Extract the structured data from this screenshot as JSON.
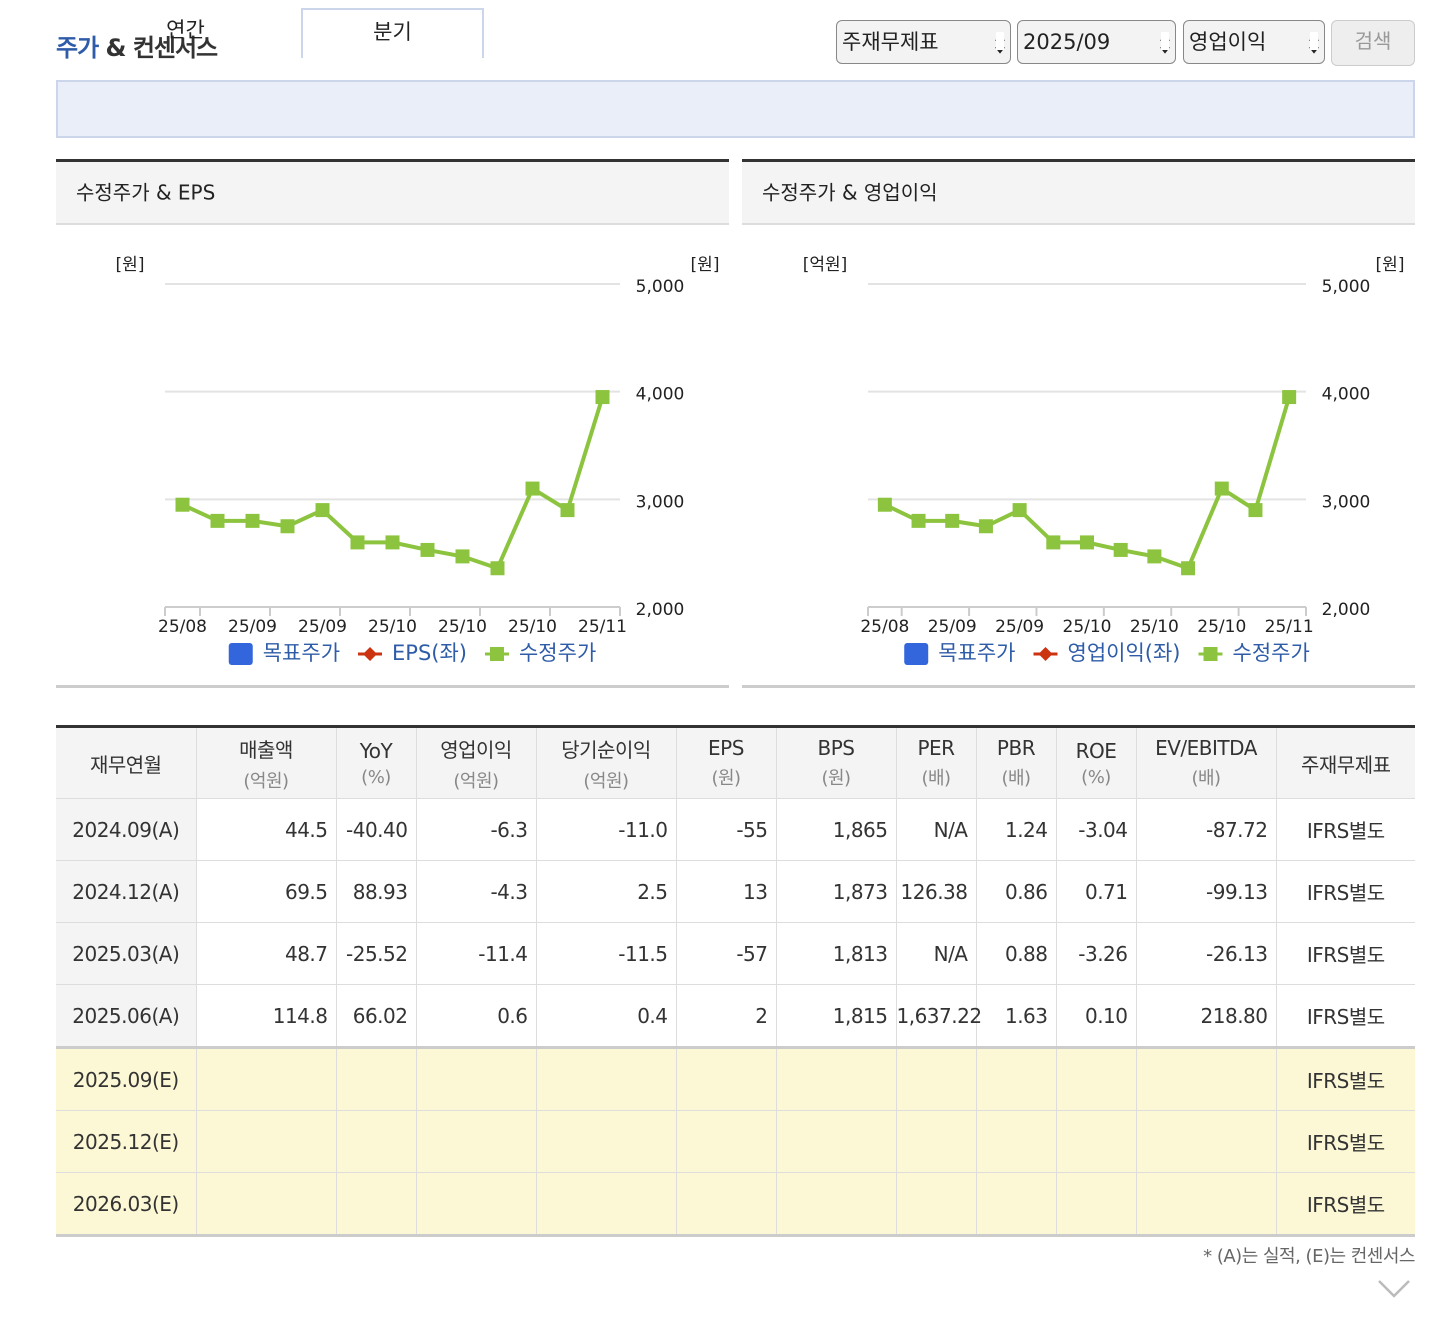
{
  "header": {
    "title_highlight": "주가",
    "title_rest": "& 컨센서스",
    "selects": [
      "주재무제표",
      "2025/09",
      "영업이익"
    ],
    "button": "검색"
  },
  "tabs": {
    "items": [
      "연간",
      "분기"
    ],
    "active": 1
  },
  "chart_data": [
    {
      "type": "line",
      "title": "수정주가 & EPS",
      "y_label": "[원]",
      "y2_label": "[원]",
      "categories": [
        "25/08",
        null,
        "25/09",
        null,
        "25/09",
        null,
        "25/10",
        null,
        "25/10",
        null,
        "25/10",
        null,
        "25/11"
      ],
      "series": [
        {
          "name": "목표주가",
          "color": "#3366dd",
          "marker": "square",
          "values": [
            null,
            null,
            null,
            null,
            null,
            null,
            null,
            null,
            null,
            null,
            null,
            null,
            null
          ]
        },
        {
          "name": "EPS(좌)",
          "color": "#cc3311",
          "marker": "diamond",
          "values": [
            null,
            null,
            null,
            null,
            null,
            null,
            null,
            null,
            null,
            null,
            null,
            null,
            null
          ]
        },
        {
          "name": "수정주가",
          "color": "#8cc43f",
          "marker": "square",
          "axis": "y2",
          "values": [
            2950,
            2800,
            2800,
            2750,
            2900,
            2600,
            2600,
            2530,
            2470,
            2360,
            3100,
            2900,
            3950
          ]
        }
      ],
      "y2lim": [
        2000,
        5000
      ],
      "y2ticks": [
        {
          "value": 2000,
          "label": "2,000"
        },
        {
          "value": 3000,
          "label": "3,000"
        },
        {
          "value": 4000,
          "label": "4,000"
        },
        {
          "value": 5000,
          "label": "5,000"
        }
      ],
      "grid": true
    },
    {
      "type": "line",
      "title": "수정주가 & 영업이익",
      "y_label": "[억원]",
      "y2_label": "[원]",
      "categories": [
        "25/08",
        null,
        "25/09",
        null,
        "25/09",
        null,
        "25/10",
        null,
        "25/10",
        null,
        "25/10",
        null,
        "25/11"
      ],
      "series": [
        {
          "name": "목표주가",
          "color": "#3366dd",
          "marker": "square",
          "values": [
            null,
            null,
            null,
            null,
            null,
            null,
            null,
            null,
            null,
            null,
            null,
            null,
            null
          ]
        },
        {
          "name": "영업이익(좌)",
          "color": "#cc3311",
          "marker": "diamond",
          "values": [
            null,
            null,
            null,
            null,
            null,
            null,
            null,
            null,
            null,
            null,
            null,
            null,
            null
          ]
        },
        {
          "name": "수정주가",
          "color": "#8cc43f",
          "marker": "square",
          "axis": "y2",
          "values": [
            2950,
            2800,
            2800,
            2750,
            2900,
            2600,
            2600,
            2530,
            2470,
            2360,
            3100,
            2900,
            3950
          ]
        }
      ],
      "y2lim": [
        2000,
        5000
      ],
      "y2ticks": [
        {
          "value": 2000,
          "label": "2,000"
        },
        {
          "value": 3000,
          "label": "3,000"
        },
        {
          "value": 4000,
          "label": "4,000"
        },
        {
          "value": 5000,
          "label": "5,000"
        }
      ],
      "grid": true
    }
  ],
  "table": {
    "headers": [
      {
        "name": "재무연월"
      },
      {
        "name": "매출액",
        "unit": "(억원)"
      },
      {
        "name": "YoY",
        "unit": "(%)"
      },
      {
        "name": "영업이익",
        "unit": "(억원)"
      },
      {
        "name": "당기순이익",
        "unit": "(억원)"
      },
      {
        "name": "EPS",
        "unit": "(원)"
      },
      {
        "name": "BPS",
        "unit": "(원)"
      },
      {
        "name": "PER",
        "unit": "(배)"
      },
      {
        "name": "PBR",
        "unit": "(배)"
      },
      {
        "name": "ROE",
        "unit": "(%)"
      },
      {
        "name": "EV/EBITDA",
        "unit": "(배)"
      },
      {
        "name": "주재무제표"
      }
    ],
    "rows": [
      [
        "2024.09(A)",
        "44.5",
        "-40.40",
        "-6.3",
        "-11.0",
        "-55",
        "1,865",
        "N/A",
        "1.24",
        "-3.04",
        "-87.72",
        "IFRS별도"
      ],
      [
        "2024.12(A)",
        "69.5",
        "88.93",
        "-4.3",
        "2.5",
        "13",
        "1,873",
        "126.38",
        "0.86",
        "0.71",
        "-99.13",
        "IFRS별도"
      ],
      [
        "2025.03(A)",
        "48.7",
        "-25.52",
        "-11.4",
        "-11.5",
        "-57",
        "1,813",
        "N/A",
        "0.88",
        "-3.26",
        "-26.13",
        "IFRS별도"
      ],
      [
        "2025.06(A)",
        "114.8",
        "66.02",
        "0.6",
        "0.4",
        "2",
        "1,815",
        "1,637.22",
        "1.63",
        "0.10",
        "218.80",
        "IFRS별도"
      ],
      [
        "2025.09(E)",
        null,
        null,
        null,
        null,
        null,
        null,
        null,
        null,
        null,
        null,
        "IFRS별도"
      ],
      [
        "2025.12(E)",
        null,
        null,
        null,
        null,
        null,
        null,
        null,
        null,
        null,
        null,
        "IFRS별도"
      ],
      [
        "2026.03(E)",
        null,
        null,
        null,
        null,
        null,
        null,
        null,
        null,
        null,
        null,
        "IFRS별도"
      ]
    ]
  },
  "footnote": "* (A)는 실적, (E)는 컨센서스"
}
